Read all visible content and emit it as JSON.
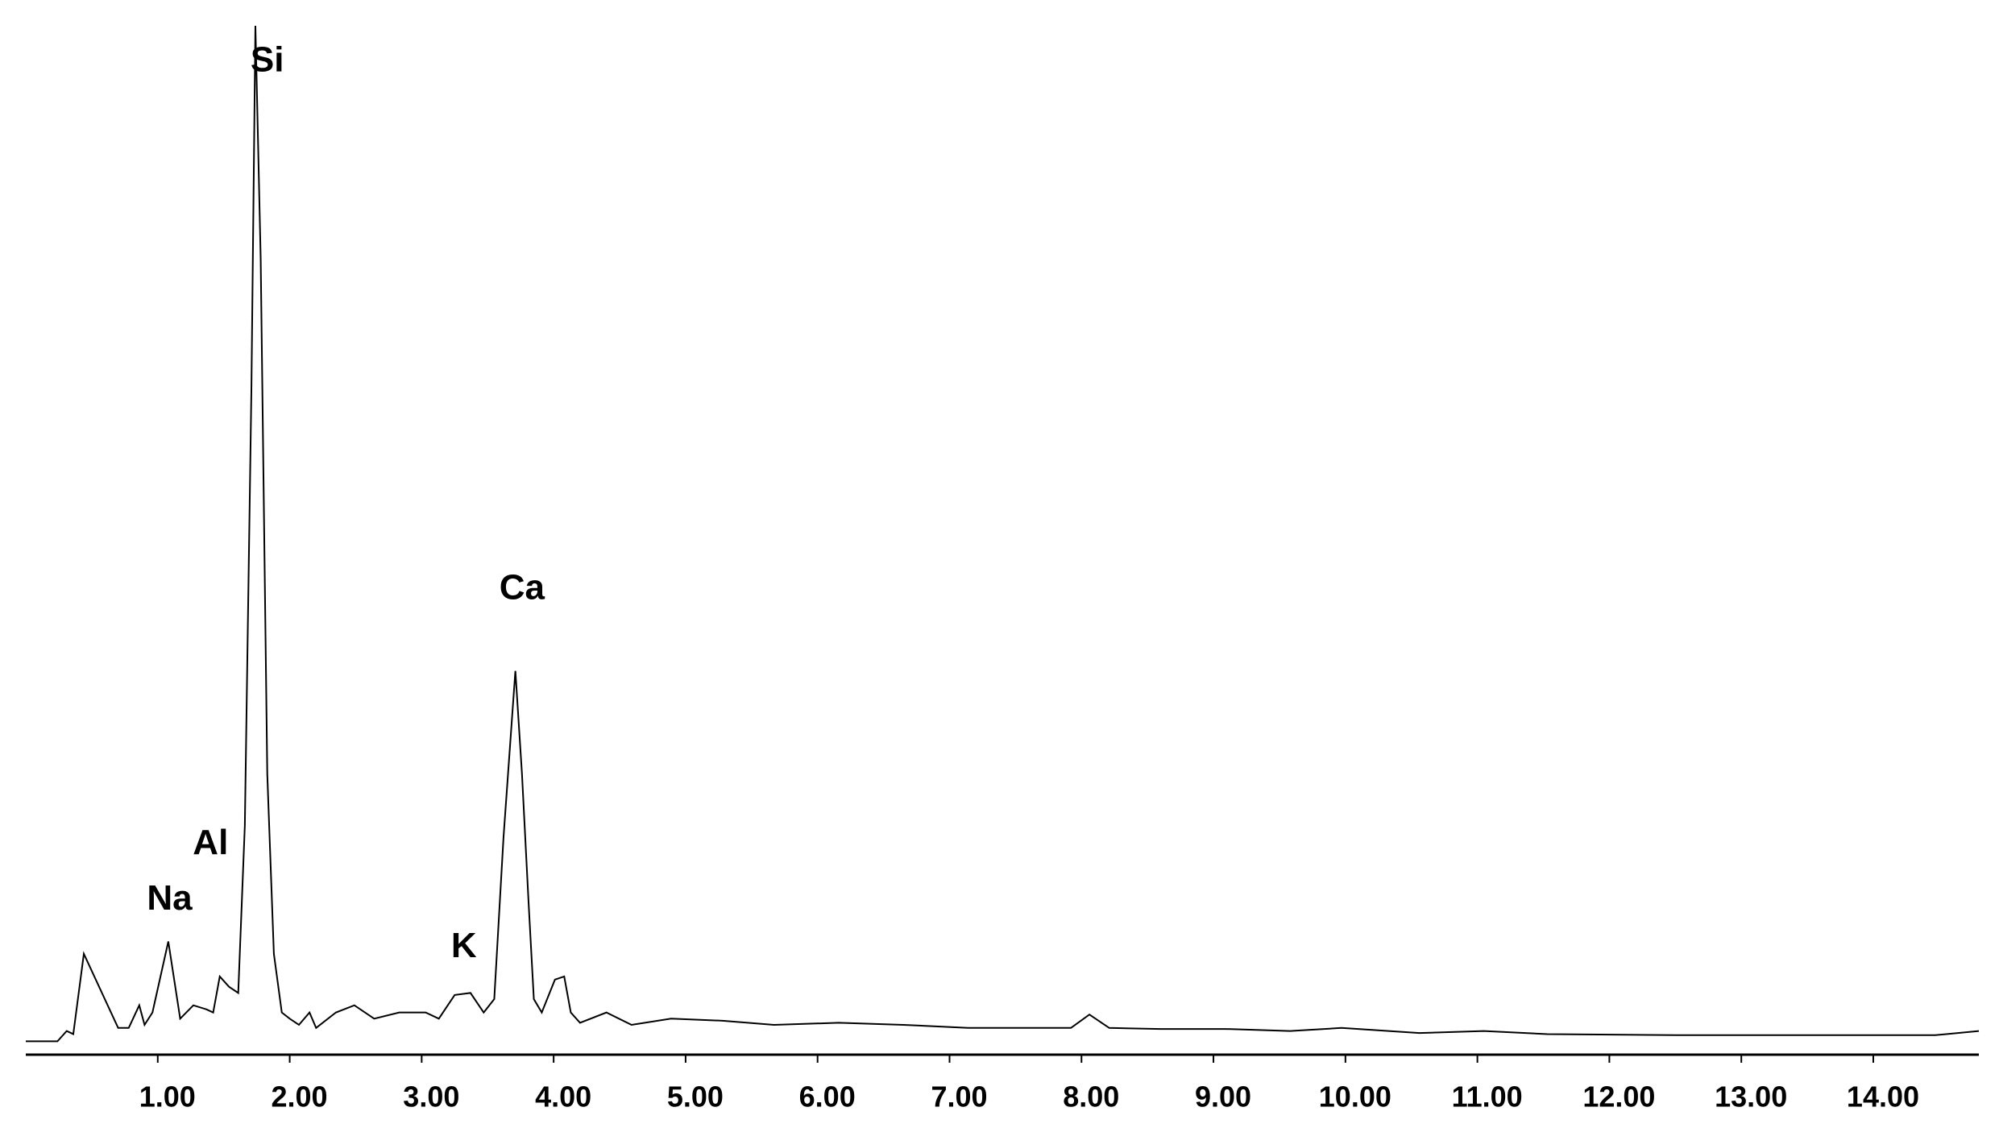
{
  "chart_data": {
    "type": "line",
    "x": [
      0.0,
      0.24,
      0.31,
      0.36,
      0.44,
      0.7,
      0.78,
      0.86,
      0.9,
      0.96,
      1.08,
      1.17,
      1.27,
      1.37,
      1.42,
      1.47,
      1.54,
      1.61,
      1.66,
      1.71,
      1.74,
      1.78,
      1.83,
      1.88,
      1.94,
      2.0,
      2.07,
      2.15,
      2.2,
      2.35,
      2.49,
      2.64,
      2.83,
      3.03,
      3.13,
      3.25,
      3.37,
      3.47,
      3.55,
      3.62,
      3.71,
      3.76,
      3.81,
      3.85,
      3.91,
      4.01,
      4.08,
      4.13,
      4.2,
      4.4,
      4.59,
      4.89,
      5.28,
      5.67,
      6.16,
      6.65,
      7.14,
      7.62,
      7.92,
      8.06,
      8.21,
      8.6,
      9.09,
      9.58,
      9.97,
      10.56,
      11.05,
      11.53,
      12.51,
      13.49,
      14.47,
      14.8
    ],
    "series": [
      {
        "color": "#000000",
        "values": [
          1.3,
          1.3,
          2.3,
          2.0,
          9.8,
          2.6,
          2.6,
          4.8,
          2.9,
          4.1,
          11.0,
          3.5,
          4.8,
          4.4,
          4.1,
          7.6,
          6.6,
          6.0,
          22.3,
          64.9,
          100,
          77.4,
          27.3,
          9.8,
          4.1,
          3.5,
          2.9,
          4.1,
          2.6,
          4.1,
          4.8,
          3.5,
          4.1,
          4.1,
          3.5,
          5.8,
          6.0,
          4.1,
          5.4,
          21.1,
          37.3,
          27.3,
          14.8,
          5.4,
          4.1,
          7.3,
          7.6,
          4.1,
          3.1,
          4.1,
          2.9,
          3.5,
          3.3,
          2.9,
          3.1,
          2.9,
          2.6,
          2.6,
          2.6,
          3.9,
          2.6,
          2.5,
          2.5,
          2.3,
          2.6,
          2.1,
          2.3,
          2.0,
          1.9,
          1.9,
          1.9,
          2.3
        ]
      }
    ],
    "xlim": [
      0,
      14.8
    ],
    "xticks": [
      {
        "value": 1,
        "label": "1.00"
      },
      {
        "value": 2,
        "label": "2.00"
      },
      {
        "value": 3,
        "label": "3.00"
      },
      {
        "value": 4,
        "label": "4.00"
      },
      {
        "value": 5,
        "label": "5.00"
      },
      {
        "value": 6,
        "label": "6.00"
      },
      {
        "value": 7,
        "label": "7.00"
      },
      {
        "value": 8,
        "label": "8.00"
      },
      {
        "value": 9,
        "label": "9.00"
      },
      {
        "value": 10,
        "label": "10.00"
      },
      {
        "value": 11,
        "label": "11.00"
      },
      {
        "value": 12,
        "label": "12.00"
      },
      {
        "value": 13,
        "label": "13.00"
      },
      {
        "value": 14,
        "label": "14.00"
      }
    ],
    "annotations": [
      {
        "text": "Na",
        "x": 1.09,
        "y": 15.0
      },
      {
        "text": "Al",
        "x": 1.4,
        "y": 20.4
      },
      {
        "text": "Si",
        "x": 1.83,
        "y": 96.5
      },
      {
        "text": "K",
        "x": 3.32,
        "y": 10.4
      },
      {
        "text": "Ca",
        "x": 3.76,
        "y": 45.2
      }
    ]
  }
}
